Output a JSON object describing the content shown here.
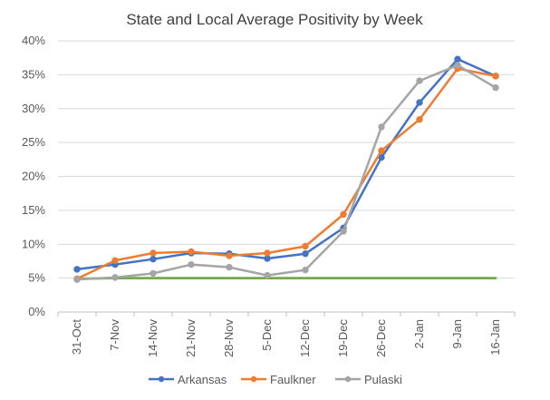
{
  "chart_data": {
    "type": "line",
    "title": "State and Local Average Positivity by Week",
    "categories": [
      "31-Oct",
      "7-Nov",
      "14-Nov",
      "21-Nov",
      "28-Nov",
      "5-Dec",
      "12-Dec",
      "19-Dec",
      "26-Dec",
      "2-Jan",
      "9-Jan",
      "16-Jan"
    ],
    "ylim": [
      0,
      40
    ],
    "yticks": [
      0,
      5,
      10,
      15,
      20,
      25,
      30,
      35,
      40
    ],
    "ytick_labels": [
      "0%",
      "5%",
      "10%",
      "15%",
      "20%",
      "25%",
      "30%",
      "35%",
      "40%"
    ],
    "grid": true,
    "legend": "bottom",
    "series": [
      {
        "name": "Arkansas",
        "color": "#4472c4",
        "markers": true,
        "values": [
          6.3,
          7.0,
          7.8,
          8.7,
          8.6,
          7.9,
          8.6,
          12.4,
          22.8,
          30.9,
          37.3,
          34.8
        ]
      },
      {
        "name": "Faulkner",
        "color": "#ed7d31",
        "markers": true,
        "values": [
          4.9,
          7.6,
          8.7,
          8.9,
          8.3,
          8.7,
          9.7,
          14.4,
          23.8,
          28.4,
          35.9,
          34.8
        ]
      },
      {
        "name": "Pulaski",
        "color": "#a5a5a5",
        "markers": true,
        "values": [
          4.8,
          5.1,
          5.7,
          7.0,
          6.6,
          5.4,
          6.2,
          11.9,
          27.3,
          34.1,
          36.4,
          33.1
        ]
      },
      {
        "name": "",
        "color": "#70ad47",
        "markers": false,
        "legend": false,
        "values": [
          4.9,
          5.0,
          5.0,
          5.0,
          5.0,
          5.0,
          5.0,
          5.0,
          5.0,
          5.0,
          5.0,
          5.0
        ]
      }
    ]
  }
}
